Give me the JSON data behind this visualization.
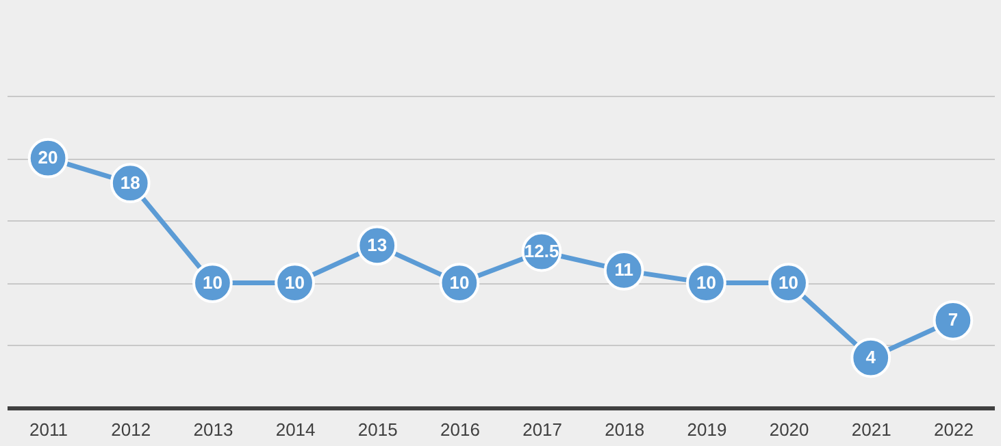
{
  "chart_data": {
    "type": "line",
    "categories": [
      "2011",
      "2012",
      "2013",
      "2014",
      "2015",
      "2016",
      "2017",
      "2018",
      "2019",
      "2020",
      "2021",
      "2022"
    ],
    "series": [
      {
        "color": "#5b9bd5",
        "values": [
          20,
          18,
          10,
          10,
          13,
          10,
          12.5,
          11,
          10,
          10,
          4,
          7
        ]
      }
    ],
    "ylim": [
      0,
      25
    ],
    "yticks": [
      {
        "value": 5,
        "label": null
      },
      {
        "value": 10,
        "label": null
      },
      {
        "value": 15,
        "label": null
      },
      {
        "value": 20,
        "label": null
      },
      {
        "value": 25,
        "label": null
      }
    ],
    "tick_labels": "x",
    "grid": "y",
    "marker": "circle",
    "line_style": "solid",
    "data_labels": true
  }
}
